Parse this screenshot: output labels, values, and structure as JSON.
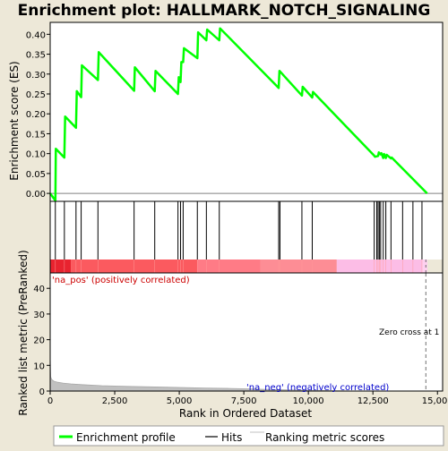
{
  "chart_data": {
    "type": "line",
    "title": "Enrichment plot: HALLMARK_NOTCH_SIGNALING",
    "es_panel": {
      "ylabel": "Enrichment score (ES)",
      "ylim": [
        -0.02,
        0.43
      ],
      "yticks": [
        0.0,
        0.05,
        0.1,
        0.15,
        0.2,
        0.25,
        0.3,
        0.35,
        0.4
      ],
      "ytick_labels": [
        "0.00",
        "0.05",
        "0.10",
        "0.15",
        "0.20",
        "0.25",
        "0.30",
        "0.35",
        "0.40"
      ],
      "series": [
        {
          "name": "Enrichment profile",
          "color": "#00ff00",
          "x": [
            0,
            200,
            220,
            550,
            580,
            1000,
            1030,
            1200,
            1230,
            1850,
            1880,
            3250,
            3280,
            4050,
            4080,
            4950,
            4980,
            5050,
            5080,
            5150,
            5180,
            5700,
            5730,
            6050,
            6080,
            6550,
            6580,
            8850,
            8880,
            9750,
            9780,
            10150,
            10180,
            12550,
            12580,
            12700,
            12730,
            12800,
            12830,
            12900,
            12930,
            13000,
            13030,
            13200,
            13230,
            14600
          ],
          "y": [
            0.0,
            -0.018,
            0.112,
            0.09,
            0.193,
            0.165,
            0.257,
            0.242,
            0.322,
            0.285,
            0.355,
            0.258,
            0.317,
            0.257,
            0.308,
            0.25,
            0.292,
            0.28,
            0.33,
            0.33,
            0.365,
            0.34,
            0.405,
            0.385,
            0.412,
            0.385,
            0.415,
            0.265,
            0.308,
            0.246,
            0.268,
            0.241,
            0.255,
            0.095,
            0.092,
            0.094,
            0.103,
            0.098,
            0.101,
            0.089,
            0.099,
            0.089,
            0.097,
            0.088,
            0.09,
            0.0
          ]
        }
      ]
    },
    "hits_panel": {
      "hits": [
        200,
        550,
        1000,
        1200,
        1850,
        3250,
        4050,
        4950,
        5050,
        5150,
        5700,
        6050,
        6550,
        8850,
        8900,
        9750,
        10150,
        12550,
        12650,
        12700,
        12750,
        12800,
        12900,
        13000,
        13200,
        13650,
        14050,
        14400
      ]
    },
    "ranking_panel": {
      "ylabel": "Ranked list metric (PreRanked)",
      "ylim": [
        0,
        46
      ],
      "yticks": [
        0,
        10,
        20,
        30,
        40
      ],
      "ytick_labels": [
        "0",
        "10",
        "20",
        "30",
        "40"
      ],
      "x": [
        0,
        20,
        60,
        150,
        300,
        500,
        800,
        1200,
        2000,
        3000,
        4500,
        6000,
        7000,
        7800,
        8500,
        9200,
        9900,
        10500,
        11000,
        11500,
        12200,
        12800,
        13500,
        14100,
        14500,
        14610
      ],
      "y": [
        13.5,
        5.5,
        4.5,
        3.8,
        3.4,
        3.1,
        2.8,
        2.5,
        2.1,
        1.8,
        1.5,
        1.2,
        1.0,
        0.8,
        0.6,
        0.45,
        0.3,
        0.2,
        0.1,
        0.05,
        0.02,
        0.01,
        0.0,
        0.0,
        0.0,
        0.0
      ],
      "pos_label": "'na_pos' (positively correlated)",
      "neg_label": "'na_neg' (negatively correlated)",
      "zero_cross_label": "Zero cross at 1",
      "zero_cross_x": 14550
    },
    "xlabel": "Rank in Ordered Dataset",
    "xlim": [
      0,
      15200
    ],
    "xticks": [
      0,
      2500,
      5000,
      7500,
      10000,
      12500,
      15000
    ],
    "xtick_labels": [
      "0",
      "2,500",
      "5,000",
      "7,500",
      "10,000",
      "12,500",
      "15,000"
    ],
    "gradient_bar": {
      "segments": [
        {
          "end": 800,
          "color": "#e8232f"
        },
        {
          "end": 5700,
          "color": "#fb5a5f"
        },
        {
          "end": 8150,
          "color": "#ff7b86"
        },
        {
          "end": 11100,
          "color": "#fd8d95"
        },
        {
          "end": 14400,
          "color": "#fcbde6"
        },
        {
          "end": 14610,
          "color": "#ffd0f0"
        }
      ]
    },
    "legend": {
      "placement": "bottom",
      "entries": [
        {
          "label": "Enrichment profile",
          "color": "#00ff00",
          "kind": "thick-line"
        },
        {
          "label": "Hits",
          "color": "#000000",
          "kind": "line"
        },
        {
          "label": "Ranking metric scores",
          "color": "#c0c0c0",
          "kind": "line"
        }
      ]
    }
  }
}
